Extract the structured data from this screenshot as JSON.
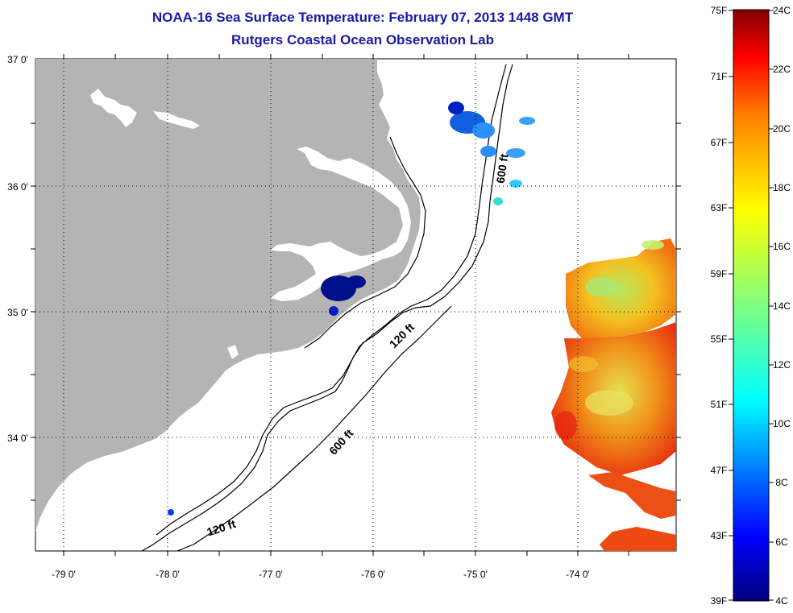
{
  "title_line1": "NOAA-16 Sea Surface Temperature:  February 07, 2013 1448 GMT",
  "title_line2": "Rutgers Coastal Ocean Observation Lab",
  "lat_labels": [
    "37 0'",
    "36 0'",
    "35 0'",
    "34 0'"
  ],
  "lon_labels": [
    "-79 0'",
    "-78 0'",
    "-77 0'",
    "-76 0'",
    "-75 0'",
    "-74 0'"
  ],
  "contour_labels": {
    "shelf_north": "600 ft",
    "inner_120": "120 ft",
    "outer_600": "600 ft",
    "south_120": "120 ft"
  },
  "colorbar": {
    "fahrenheit": [
      "75F",
      "71F",
      "67F",
      "63F",
      "59F",
      "55F",
      "51F",
      "47F",
      "43F",
      "39F"
    ],
    "celsius": [
      "24C",
      "22C",
      "20C",
      "18C",
      "16C",
      "14C",
      "12C",
      "10C",
      "8C",
      "6C",
      "4C"
    ],
    "colors": [
      "#00007f",
      "#0000ff",
      "#0080ff",
      "#00ffff",
      "#80ff80",
      "#ffff00",
      "#ff8000",
      "#ff0000",
      "#800000"
    ]
  },
  "colors": {
    "land": "#b4b4b4",
    "title": "#1a1aa8",
    "grid": "#000000"
  }
}
